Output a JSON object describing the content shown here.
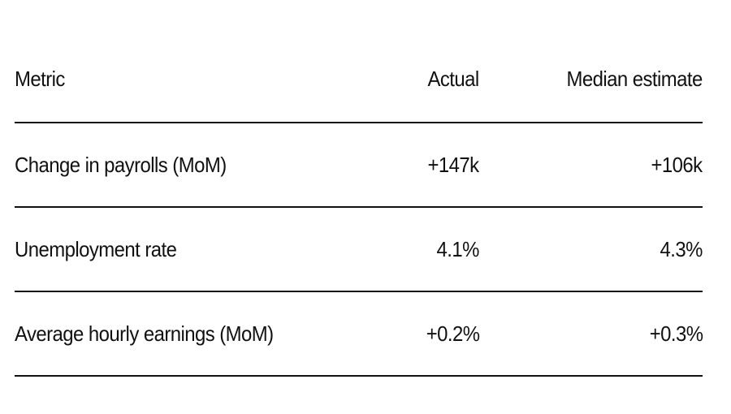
{
  "chart_data": {
    "type": "table",
    "columns": [
      "Metric",
      "Actual",
      "Median estimate"
    ],
    "rows": [
      {
        "metric": "Change in payrolls (MoM)",
        "actual": "+147k",
        "median": "+106k"
      },
      {
        "metric": "Unemployment rate",
        "actual": "4.1%",
        "median": "4.3%"
      },
      {
        "metric": "Average hourly earnings (MoM)",
        "actual": "+0.2%",
        "median": "+0.3%"
      }
    ]
  }
}
